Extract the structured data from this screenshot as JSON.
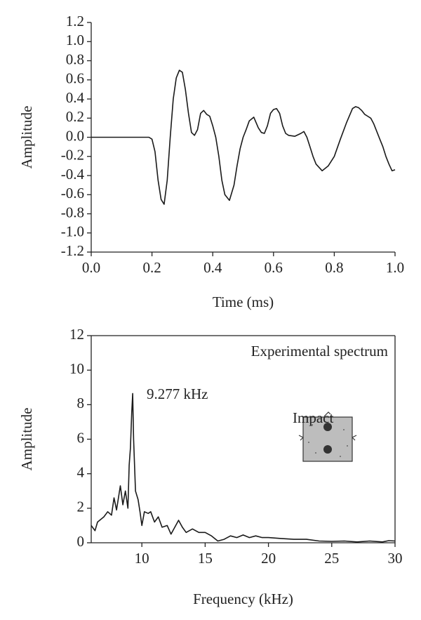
{
  "chart_data": [
    {
      "type": "line",
      "xlabel": "Time (ms)",
      "ylabel": "Amplitude",
      "color": "#1a1a1a",
      "frame": false,
      "x": [
        0,
        0.19,
        0.2,
        0.21,
        0.22,
        0.23,
        0.24,
        0.25,
        0.26,
        0.27,
        0.28,
        0.29,
        0.3,
        0.31,
        0.32,
        0.33,
        0.34,
        0.35,
        0.36,
        0.37,
        0.38,
        0.39,
        0.4,
        0.41,
        0.42,
        0.43,
        0.44,
        0.455,
        0.47,
        0.48,
        0.49,
        0.5,
        0.51,
        0.52,
        0.535,
        0.55,
        0.56,
        0.57,
        0.58,
        0.59,
        0.6,
        0.61,
        0.62,
        0.63,
        0.64,
        0.65,
        0.67,
        0.69,
        0.7,
        0.71,
        0.72,
        0.73,
        0.74,
        0.76,
        0.78,
        0.8,
        0.82,
        0.84,
        0.86,
        0.87,
        0.88,
        0.89,
        0.9,
        0.91,
        0.92,
        0.93,
        0.94,
        0.95,
        0.96,
        0.97,
        0.98,
        0.99,
        1.0
      ],
      "values": [
        0,
        0,
        -0.02,
        -0.15,
        -0.45,
        -0.65,
        -0.7,
        -0.45,
        0.0,
        0.4,
        0.62,
        0.7,
        0.68,
        0.5,
        0.25,
        0.05,
        0.02,
        0.08,
        0.25,
        0.28,
        0.24,
        0.22,
        0.12,
        0.0,
        -0.2,
        -0.45,
        -0.6,
        -0.66,
        -0.5,
        -0.3,
        -0.12,
        0.0,
        0.08,
        0.17,
        0.21,
        0.1,
        0.05,
        0.04,
        0.12,
        0.25,
        0.29,
        0.3,
        0.25,
        0.12,
        0.04,
        0.02,
        0.01,
        0.04,
        0.06,
        0.0,
        -0.1,
        -0.2,
        -0.28,
        -0.35,
        -0.3,
        -0.2,
        -0.02,
        0.15,
        0.3,
        0.32,
        0.31,
        0.28,
        0.24,
        0.22,
        0.2,
        0.14,
        0.06,
        -0.02,
        -0.1,
        -0.2,
        -0.28,
        -0.35,
        -0.34
      ],
      "xlim": [
        0,
        1
      ],
      "xticks": [
        {
          "value": 0,
          "label": "0.0"
        },
        0.2,
        0.4,
        0.6,
        0.8,
        {
          "value": 1,
          "label": "1.0"
        }
      ],
      "ylim": [
        -1.2,
        1.2
      ],
      "yticks": [
        1.2,
        {
          "value": 1,
          "label": "1.0"
        },
        0.8,
        0.6,
        0.4,
        0.2,
        {
          "value": 0,
          "label": "0.0"
        },
        -0.2,
        -0.4,
        -0.6,
        -0.8,
        {
          "value": -1,
          "label": "-1.0"
        },
        -1.2
      ]
    },
    {
      "type": "line",
      "xlabel": "Frequency (kHz)",
      "ylabel": "Amplitude",
      "color": "#1a1a1a",
      "frame": true,
      "annotations": [
        "Experimental spectrum",
        "9.277 kHz",
        "Impact"
      ],
      "x": [
        6,
        6.3,
        6.5,
        7,
        7.3,
        7.6,
        7.8,
        8,
        8.3,
        8.5,
        8.7,
        8.9,
        9.0,
        9.1,
        9.2,
        9.277,
        9.35,
        9.5,
        9.7,
        9.85,
        10.0,
        10.2,
        10.5,
        10.7,
        11,
        11.3,
        11.6,
        12,
        12.3,
        12.6,
        12.9,
        13.2,
        13.5,
        14,
        14.5,
        15,
        15.5,
        16,
        16.5,
        17,
        17.5,
        18,
        18.5,
        19,
        19.5,
        20,
        21,
        22,
        23,
        24,
        25,
        26,
        27,
        28,
        29,
        29.5,
        30
      ],
      "values": [
        1.0,
        0.7,
        1.2,
        1.5,
        1.8,
        1.6,
        2.6,
        1.9,
        3.3,
        2.2,
        3.0,
        2.0,
        4.5,
        5.5,
        7.5,
        8.65,
        6.0,
        3.0,
        2.5,
        1.8,
        1.0,
        1.8,
        1.7,
        1.8,
        1.2,
        1.5,
        0.9,
        1.0,
        0.5,
        0.9,
        1.3,
        0.9,
        0.6,
        0.8,
        0.6,
        0.6,
        0.4,
        0.1,
        0.2,
        0.4,
        0.3,
        0.45,
        0.3,
        0.4,
        0.3,
        0.3,
        0.25,
        0.2,
        0.2,
        0.1,
        0.08,
        0.1,
        0.05,
        0.1,
        0.05,
        0.12,
        0.1
      ],
      "xlim": [
        6,
        30
      ],
      "xticks": [
        10,
        15,
        20,
        25,
        30
      ],
      "ylim": [
        0,
        12
      ],
      "yticks": [
        0,
        2,
        4,
        6,
        8,
        10,
        12
      ]
    }
  ]
}
